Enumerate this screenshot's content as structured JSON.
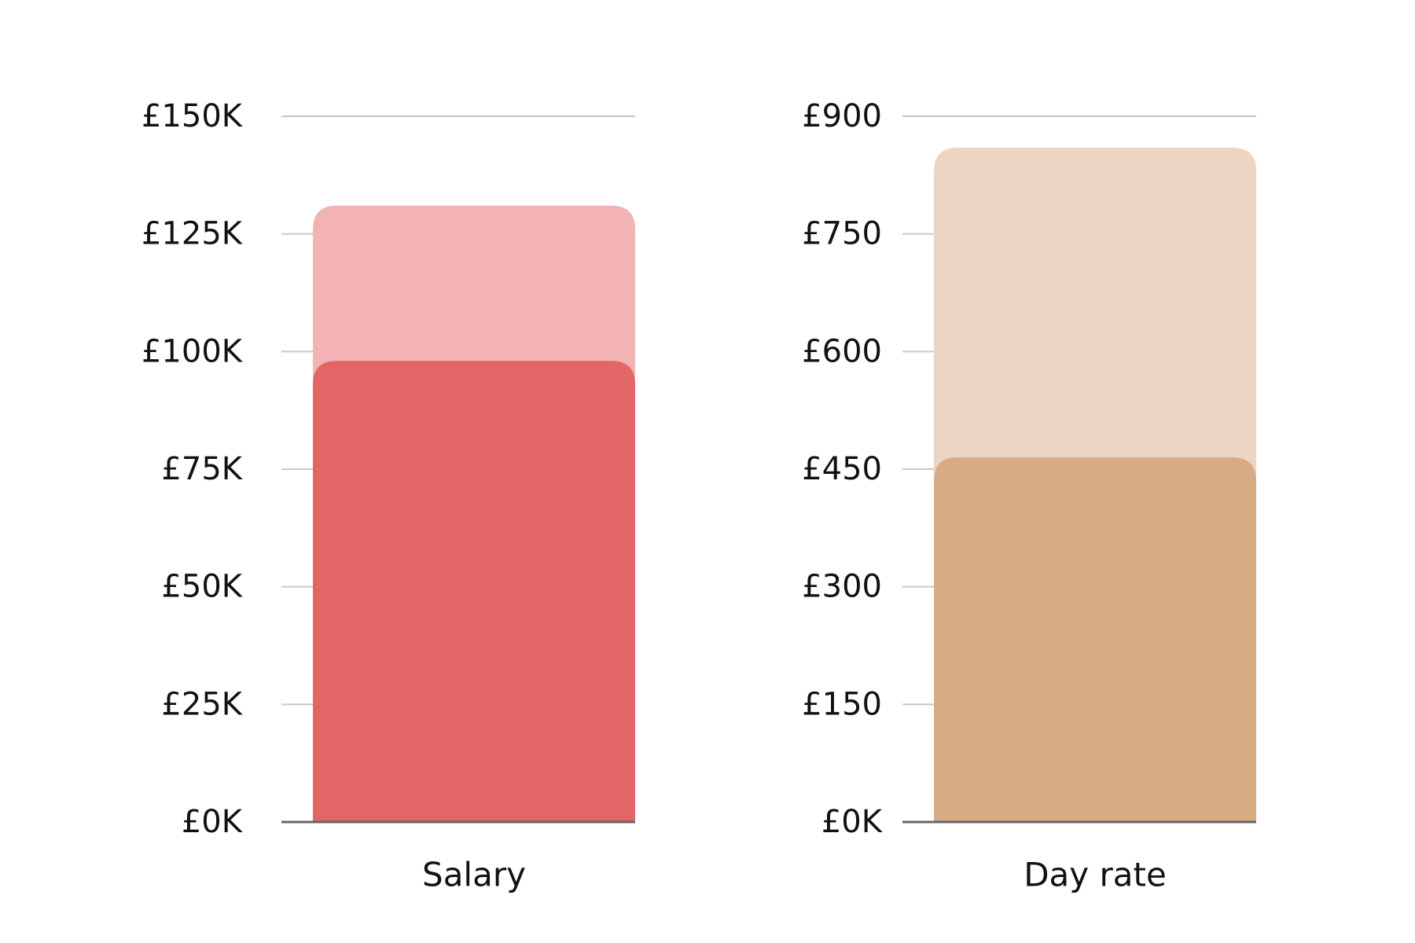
{
  "chart_data": [
    {
      "type": "bar",
      "categories": [
        "Salary"
      ],
      "series": [
        {
          "values": [
            131000
          ],
          "color": "#f3b3b5"
        },
        {
          "values": [
            98000
          ],
          "color": "#e26666"
        }
      ],
      "ylim": [
        0,
        150000
      ],
      "yticks": [
        0,
        25000,
        50000,
        75000,
        100000,
        125000,
        150000
      ],
      "ytick_labels": [
        "£0K",
        "£25K",
        "£50K",
        "£75K",
        "£100K",
        "£125K",
        "£150K"
      ],
      "grid": true,
      "gridline_color": "#c8c8c8",
      "baseline_color": "#666666"
    },
    {
      "type": "bar",
      "categories": [
        "Day rate"
      ],
      "series": [
        {
          "values": [
            860
          ],
          "color": "#edd5c3"
        },
        {
          "values": [
            465
          ],
          "color": "#d9ab84"
        }
      ],
      "ylim": [
        0,
        900
      ],
      "yticks": [
        0,
        150,
        300,
        450,
        600,
        750,
        900
      ],
      "ytick_labels": [
        "£0K",
        "£150",
        "£300",
        "£450",
        "£600",
        "£750",
        "£900"
      ],
      "grid": true,
      "gridline_color": "#c8c8c8",
      "baseline_color": "#666666"
    }
  ]
}
